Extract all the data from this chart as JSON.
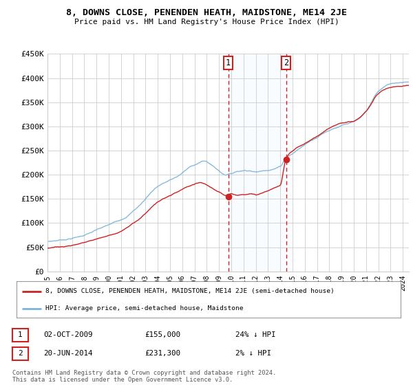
{
  "title": "8, DOWNS CLOSE, PENENDEN HEATH, MAIDSTONE, ME14 2JE",
  "subtitle": "Price paid vs. HM Land Registry's House Price Index (HPI)",
  "ylim": [
    0,
    450000
  ],
  "xlim_start": 1995.0,
  "xlim_end": 2024.5,
  "purchase1_date": 2009.75,
  "purchase1_price": 155000,
  "purchase2_date": 2014.47,
  "purchase2_price": 231300,
  "legend_line1": "8, DOWNS CLOSE, PENENDEN HEATH, MAIDSTONE, ME14 2JE (semi-detached house)",
  "legend_line2": "HPI: Average price, semi-detached house, Maidstone",
  "table_row1": [
    "1",
    "02-OCT-2009",
    "£155,000",
    "24% ↓ HPI"
  ],
  "table_row2": [
    "2",
    "20-JUN-2014",
    "£231,300",
    "2% ↓ HPI"
  ],
  "footer": "Contains HM Land Registry data © Crown copyright and database right 2024.\nThis data is licensed under the Open Government Licence v3.0.",
  "hpi_color": "#7ab4d8",
  "price_color": "#cc2222",
  "bg_color": "#ffffff",
  "grid_color": "#cccccc",
  "shade_color": "#ddeeff",
  "box_color": "#cc2222",
  "hpi_keypoints": [
    [
      1995.0,
      62000
    ],
    [
      1996.0,
      65000
    ],
    [
      1997.5,
      72000
    ],
    [
      1999.0,
      85000
    ],
    [
      2001.0,
      105000
    ],
    [
      2002.5,
      135000
    ],
    [
      2004.0,
      175000
    ],
    [
      2005.5,
      193000
    ],
    [
      2007.0,
      218000
    ],
    [
      2007.8,
      225000
    ],
    [
      2008.5,
      215000
    ],
    [
      2009.0,
      205000
    ],
    [
      2009.5,
      198000
    ],
    [
      2010.0,
      200000
    ],
    [
      2010.5,
      205000
    ],
    [
      2011.5,
      208000
    ],
    [
      2012.0,
      205000
    ],
    [
      2013.0,
      210000
    ],
    [
      2014.0,
      218000
    ],
    [
      2014.47,
      236000
    ],
    [
      2015.0,
      245000
    ],
    [
      2016.0,
      263000
    ],
    [
      2017.0,
      280000
    ],
    [
      2018.0,
      295000
    ],
    [
      2019.0,
      305000
    ],
    [
      2020.0,
      310000
    ],
    [
      2021.0,
      330000
    ],
    [
      2022.0,
      370000
    ],
    [
      2023.0,
      385000
    ],
    [
      2024.0,
      390000
    ],
    [
      2024.5,
      392000
    ]
  ],
  "price_keypoints": [
    [
      1995.0,
      48000
    ],
    [
      1996.0,
      50000
    ],
    [
      1997.5,
      57000
    ],
    [
      1999.0,
      68000
    ],
    [
      2001.0,
      85000
    ],
    [
      2002.5,
      110000
    ],
    [
      2004.0,
      145000
    ],
    [
      2005.5,
      163000
    ],
    [
      2007.0,
      178000
    ],
    [
      2007.5,
      180000
    ],
    [
      2008.0,
      175000
    ],
    [
      2008.5,
      168000
    ],
    [
      2009.0,
      160000
    ],
    [
      2009.5,
      153000
    ],
    [
      2009.75,
      155000
    ],
    [
      2010.0,
      158000
    ],
    [
      2010.5,
      155000
    ],
    [
      2011.0,
      157000
    ],
    [
      2011.5,
      160000
    ],
    [
      2012.0,
      157000
    ],
    [
      2012.5,
      160000
    ],
    [
      2013.0,
      165000
    ],
    [
      2013.5,
      170000
    ],
    [
      2014.0,
      175000
    ],
    [
      2014.47,
      231300
    ],
    [
      2015.0,
      248000
    ],
    [
      2016.0,
      263000
    ],
    [
      2017.0,
      278000
    ],
    [
      2018.0,
      293000
    ],
    [
      2019.0,
      303000
    ],
    [
      2020.0,
      308000
    ],
    [
      2021.0,
      328000
    ],
    [
      2022.0,
      365000
    ],
    [
      2023.0,
      378000
    ],
    [
      2024.0,
      383000
    ],
    [
      2024.5,
      385000
    ]
  ]
}
